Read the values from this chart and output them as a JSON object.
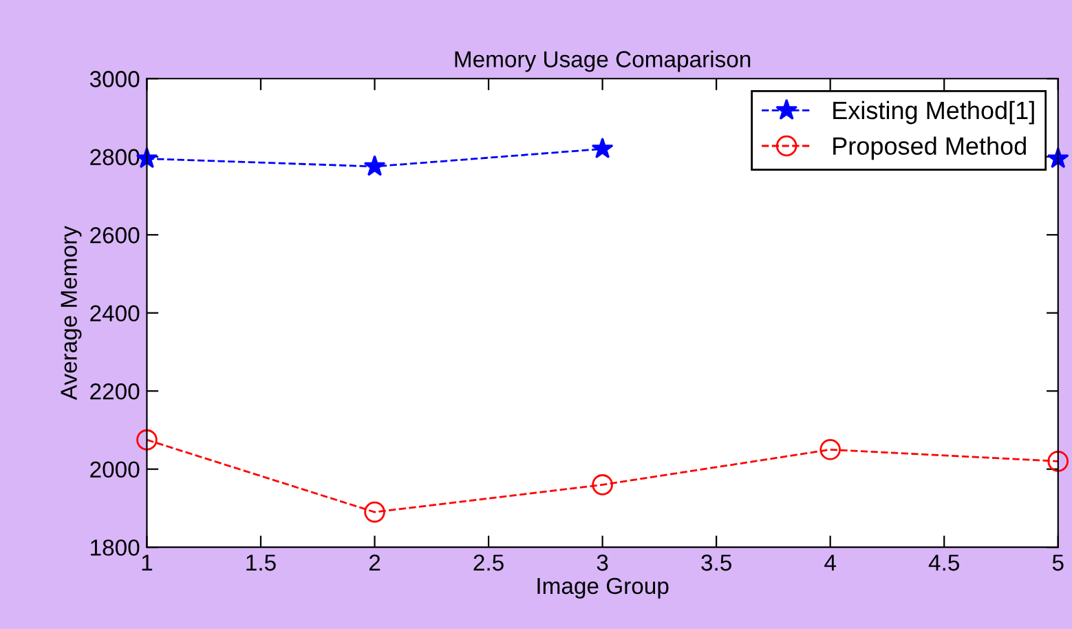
{
  "chart_data": {
    "type": "line",
    "title": "Memory Usage Comaparison",
    "xlabel": "Image Group",
    "ylabel": "Average Memory",
    "x": [
      1,
      2,
      3,
      4,
      5
    ],
    "series": [
      {
        "name": "Existing Method[1]",
        "color": "#0000ff",
        "marker": "star",
        "values": [
          2795,
          2775,
          2820,
          null,
          2795
        ]
      },
      {
        "name": "Proposed Method",
        "color": "#ff0000",
        "marker": "circle",
        "values": [
          2075,
          1890,
          1960,
          2050,
          2020
        ]
      }
    ],
    "xlim": [
      1,
      5
    ],
    "xticks": [
      1,
      1.5,
      2,
      2.5,
      3,
      3.5,
      4,
      4.5,
      5
    ],
    "ylim": [
      1800,
      3000
    ],
    "yticks": [
      1800,
      2000,
      2200,
      2400,
      2600,
      2800,
      3000
    ],
    "line_style": "dashed",
    "grid": false,
    "legend": "top right"
  }
}
